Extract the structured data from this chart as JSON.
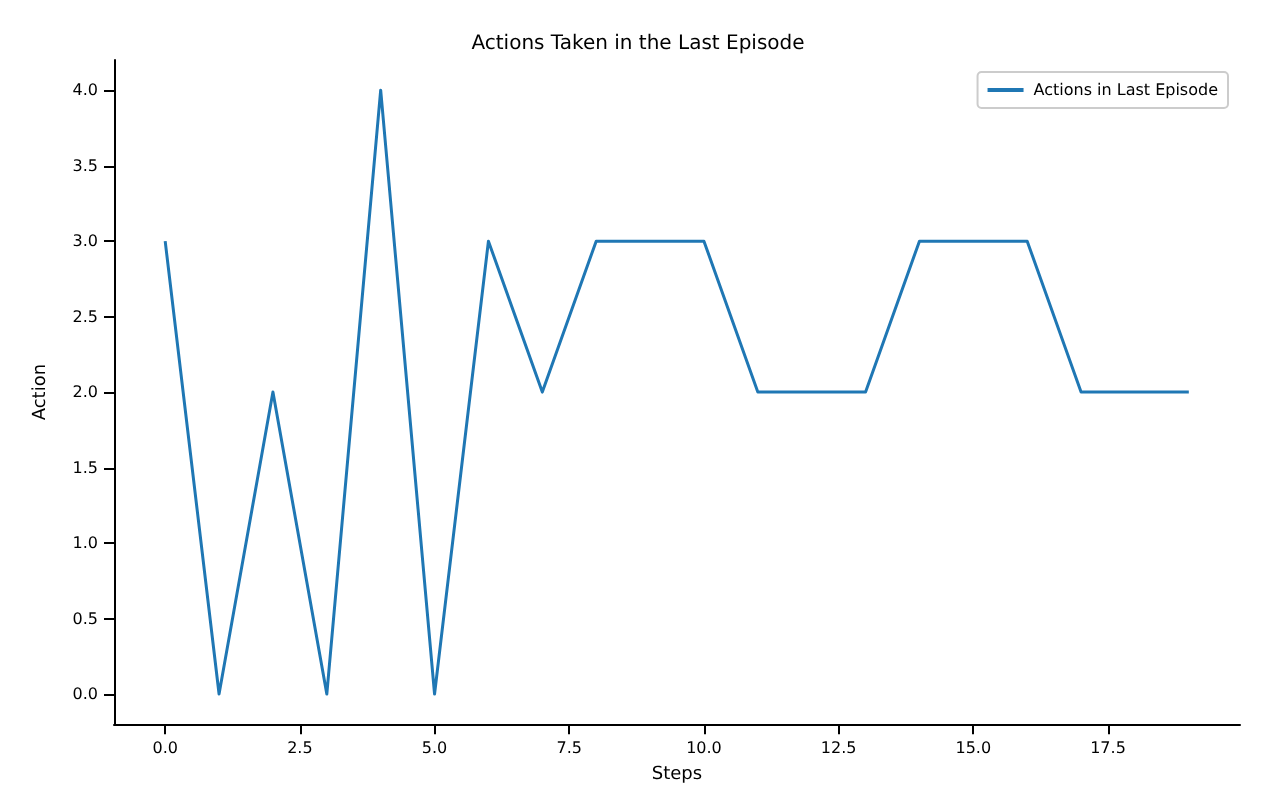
{
  "chart_data": {
    "type": "line",
    "title": "Actions Taken in the Last Episode",
    "xlabel": "Steps",
    "ylabel": "Action",
    "x": [
      0,
      1,
      2,
      3,
      4,
      5,
      6,
      7,
      8,
      9,
      10,
      11,
      12,
      13,
      14,
      15,
      16,
      17,
      18,
      19
    ],
    "series": [
      {
        "name": "Actions in Last Episode",
        "color": "#1f77b4",
        "values": [
          3,
          0,
          2,
          0,
          4,
          0,
          3,
          2,
          3,
          3,
          3,
          2,
          2,
          2,
          3,
          3,
          3,
          2,
          2,
          2
        ]
      }
    ],
    "xlim": [
      -0.95,
      19.95
    ],
    "xticks": [
      {
        "value": 0,
        "label": "0.0"
      },
      {
        "value": 2.5,
        "label": "2.5"
      },
      {
        "value": 5,
        "label": "5.0"
      },
      {
        "value": 7.5,
        "label": "7.5"
      },
      {
        "value": 10,
        "label": "10.0"
      },
      {
        "value": 12.5,
        "label": "12.5"
      },
      {
        "value": 15,
        "label": "15.0"
      },
      {
        "value": 17.5,
        "label": "17.5"
      }
    ],
    "ylim": [
      -0.2,
      4.2
    ],
    "yticks": [
      {
        "value": 0,
        "label": "0.0"
      },
      {
        "value": 0.5,
        "label": "0.5"
      },
      {
        "value": 1,
        "label": "1.0"
      },
      {
        "value": 1.5,
        "label": "1.5"
      },
      {
        "value": 2,
        "label": "2.0"
      },
      {
        "value": 2.5,
        "label": "2.5"
      },
      {
        "value": 3,
        "label": "3.0"
      },
      {
        "value": 3.5,
        "label": "3.5"
      },
      {
        "value": 4,
        "label": "4.0"
      }
    ],
    "legend": "top right",
    "marker": "none",
    "line_style": "solid"
  }
}
